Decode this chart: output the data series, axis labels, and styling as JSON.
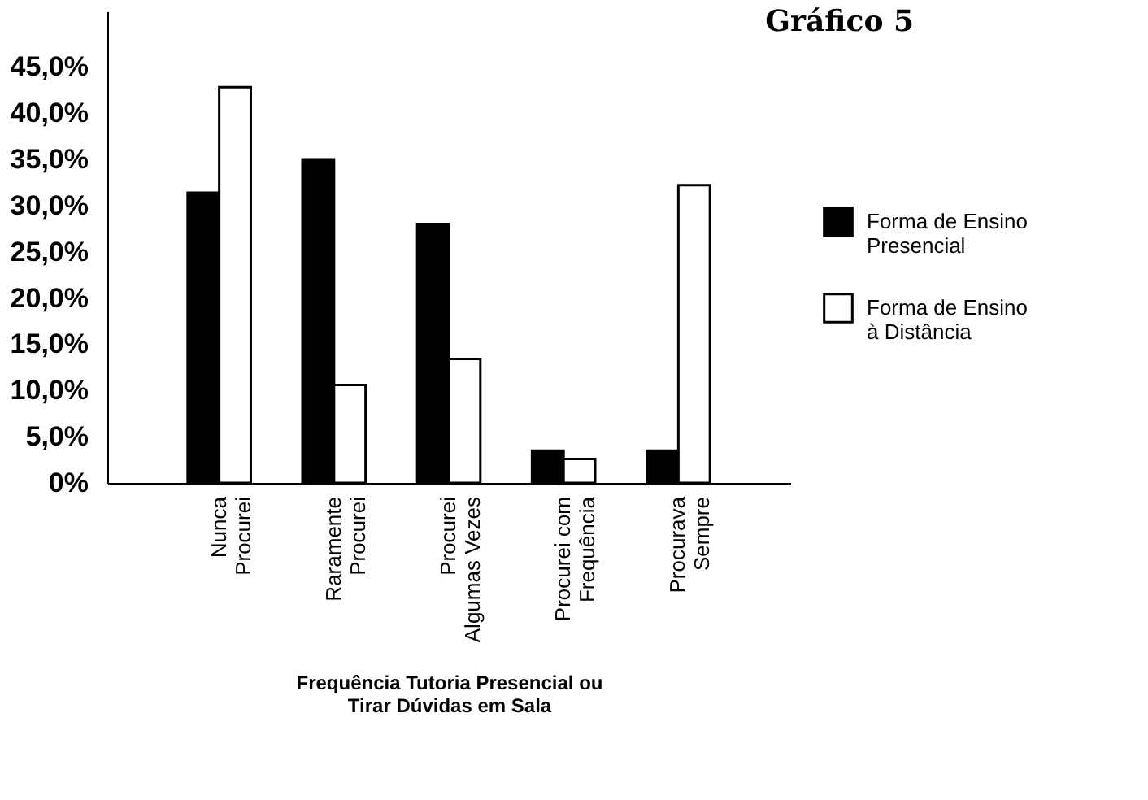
{
  "chart_data": {
    "type": "bar",
    "title": "Gráfico 5",
    "xlabel": "Frequência Tutoria Presencial ou\nTirar Dúvidas em Sala",
    "categories": [
      "Nunca\nProcurei",
      "Raramente\nProcurei",
      "Procurei\nAlgumas Vezes",
      "Procurei com\nFrequência",
      "Procurava\nSempre"
    ],
    "series": [
      {
        "name": "Forma de Ensino\nPresencial",
        "color": "#000000",
        "values": [
          31.4,
          35.0,
          28.0,
          3.5,
          3.5
        ]
      },
      {
        "name": "Forma de Ensino\nà Distância",
        "color": "#ffffff",
        "values": [
          42.8,
          10.6,
          13.4,
          2.6,
          32.2
        ]
      }
    ],
    "ylim": [
      0,
      51
    ],
    "yticks": [
      {
        "value": 0,
        "label": "0%"
      },
      {
        "value": 5,
        "label": "5,0%"
      },
      {
        "value": 10,
        "label": "10,0%"
      },
      {
        "value": 15,
        "label": "15,0%"
      },
      {
        "value": 20,
        "label": "20,0%"
      },
      {
        "value": 25,
        "label": "25,0%"
      },
      {
        "value": 30,
        "label": "30,0%"
      },
      {
        "value": 35,
        "label": "35,0%"
      },
      {
        "value": 40,
        "label": "40,0%"
      },
      {
        "value": 45,
        "label": "45,0%"
      }
    ],
    "grid": false,
    "legend": "right"
  }
}
